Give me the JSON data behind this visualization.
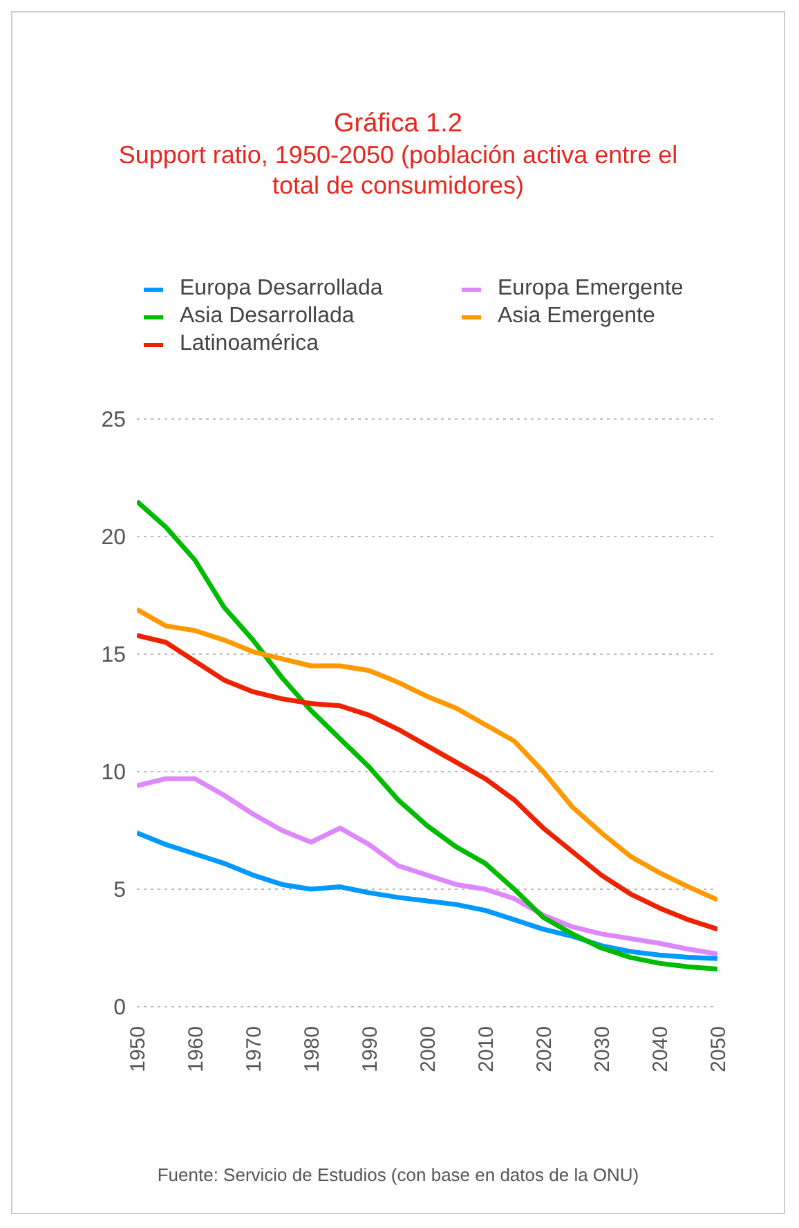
{
  "chart_data": {
    "type": "line",
    "title": "Gráfica 1.2",
    "subtitle": "Support ratio, 1950-2050 (población activa entre el total de consumidores)",
    "x": [
      1950,
      1955,
      1960,
      1965,
      1970,
      1975,
      1980,
      1985,
      1990,
      1995,
      2000,
      2005,
      2010,
      2015,
      2020,
      2025,
      2030,
      2035,
      2040,
      2045,
      2050
    ],
    "xlim": [
      1950,
      2050
    ],
    "xticks": [
      1950,
      1960,
      1970,
      1980,
      1990,
      2000,
      2010,
      2020,
      2030,
      2040,
      2050
    ],
    "ylim": [
      0,
      25
    ],
    "yticks": [
      0,
      5,
      10,
      15,
      20,
      25
    ],
    "grid": "y",
    "legend": "top",
    "marker": "none",
    "line_style": "solid",
    "series": [
      {
        "name": "Europa Desarrollada",
        "color": "#0099ff",
        "values": [
          7.4,
          6.9,
          6.5,
          6.1,
          5.6,
          5.2,
          5.0,
          5.1,
          4.85,
          4.65,
          4.5,
          4.35,
          4.1,
          3.7,
          3.3,
          3.0,
          2.6,
          2.35,
          2.2,
          2.1,
          2.05
        ]
      },
      {
        "name": "Europa Emergente",
        "color": "#dd88ff",
        "values": [
          9.4,
          9.7,
          9.7,
          9.0,
          8.2,
          7.5,
          7.0,
          7.6,
          6.9,
          6.0,
          5.6,
          5.2,
          5.0,
          4.6,
          3.9,
          3.4,
          3.1,
          2.9,
          2.7,
          2.45,
          2.25
        ]
      },
      {
        "name": "Asia Desarrollada",
        "color": "#00bb00",
        "values": [
          21.5,
          20.4,
          19.0,
          17.0,
          15.6,
          14.0,
          12.6,
          11.4,
          10.2,
          8.8,
          7.7,
          6.8,
          6.1,
          5.0,
          3.8,
          3.1,
          2.5,
          2.1,
          1.85,
          1.7,
          1.6
        ]
      },
      {
        "name": "Asia Emergente",
        "color": "#ff9900",
        "values": [
          16.9,
          16.2,
          16.0,
          15.6,
          15.1,
          14.8,
          14.5,
          14.5,
          14.3,
          13.8,
          13.2,
          12.7,
          12.0,
          11.3,
          10.0,
          8.5,
          7.4,
          6.4,
          5.7,
          5.1,
          4.55
        ]
      },
      {
        "name": "Latinoamérica",
        "color": "#ee2200",
        "values": [
          15.8,
          15.5,
          14.7,
          13.9,
          13.4,
          13.1,
          12.9,
          12.8,
          12.4,
          11.8,
          11.1,
          10.4,
          9.7,
          8.8,
          7.6,
          6.6,
          5.6,
          4.8,
          4.2,
          3.7,
          3.3
        ]
      }
    ],
    "annotations": [
      "Fuente: Servicio de Estudios (con base en datos de la ONU)"
    ]
  }
}
